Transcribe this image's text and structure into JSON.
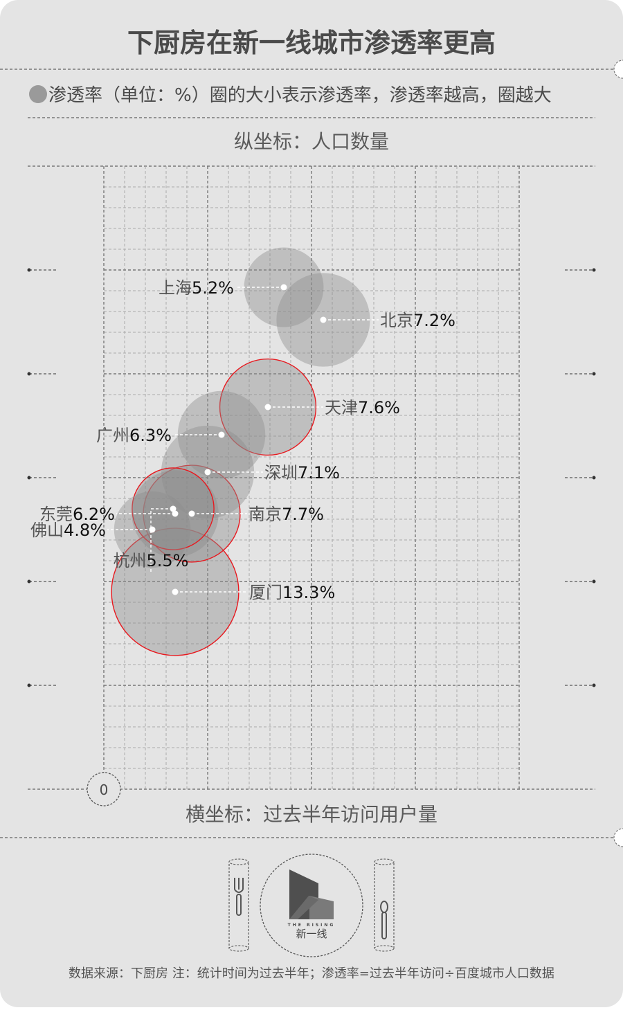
{
  "header": {
    "title": "下厨房在新一线城市渗透率更高",
    "legend_note": "渗透率（单位：%）圈的大小表示渗透率，渗透率越高，圈越大",
    "origin_label": "0"
  },
  "footer": {
    "brand_en": "THE RISING",
    "brand_cn": "新一线",
    "source": "数据来源：下厨房 注：统计时间为过去半年；渗透率=过去半年访问÷百度城市人口数据"
  },
  "colors": {
    "background": "#e4e4e4",
    "bubble_fill": "#8c8c8c",
    "highlight_stroke": "#e8191f",
    "grid": "#9a9a9a",
    "text": "#4a4a4a"
  },
  "chart_data": {
    "type": "scatter",
    "title": "下厨房在新一线城市渗透率更高",
    "ylabel": "纵坐标：人口数量",
    "xlabel": "横坐标：过去半年访问用户量",
    "size_label": "渗透率（单位：%）",
    "xlim": [
      0,
      6
    ],
    "ylim": [
      0,
      9
    ],
    "grid": true,
    "points": [
      {
        "city": "上海",
        "value": "5.2%",
        "penetration": 5.2,
        "x": 2.6,
        "y": 7.25,
        "highlight": false
      },
      {
        "city": "北京",
        "value": "7.2%",
        "penetration": 7.2,
        "x": 3.17,
        "y": 6.78,
        "highlight": false
      },
      {
        "city": "天津",
        "value": "7.6%",
        "penetration": 7.6,
        "x": 2.37,
        "y": 5.52,
        "highlight": true
      },
      {
        "city": "广州",
        "value": "6.3%",
        "penetration": 6.3,
        "x": 1.7,
        "y": 5.12,
        "highlight": false
      },
      {
        "city": "深圳",
        "value": "7.1%",
        "penetration": 7.1,
        "x": 1.5,
        "y": 4.58,
        "highlight": false
      },
      {
        "city": "杭州",
        "value": "5.5%",
        "penetration": 5.5,
        "x": 1.0,
        "y": 4.05,
        "highlight": true
      },
      {
        "city": "东莞",
        "value": "6.2%",
        "penetration": 6.2,
        "x": 1.03,
        "y": 3.98,
        "highlight": false
      },
      {
        "city": "南京",
        "value": "7.7%",
        "penetration": 7.7,
        "x": 1.27,
        "y": 3.98,
        "highlight": true
      },
      {
        "city": "佛山",
        "value": "4.8%",
        "penetration": 4.8,
        "x": 0.7,
        "y": 3.75,
        "highlight": false
      },
      {
        "city": "厦门",
        "value": "13.3%",
        "penetration": 13.3,
        "x": 1.03,
        "y": 2.85,
        "highlight": true
      }
    ]
  }
}
